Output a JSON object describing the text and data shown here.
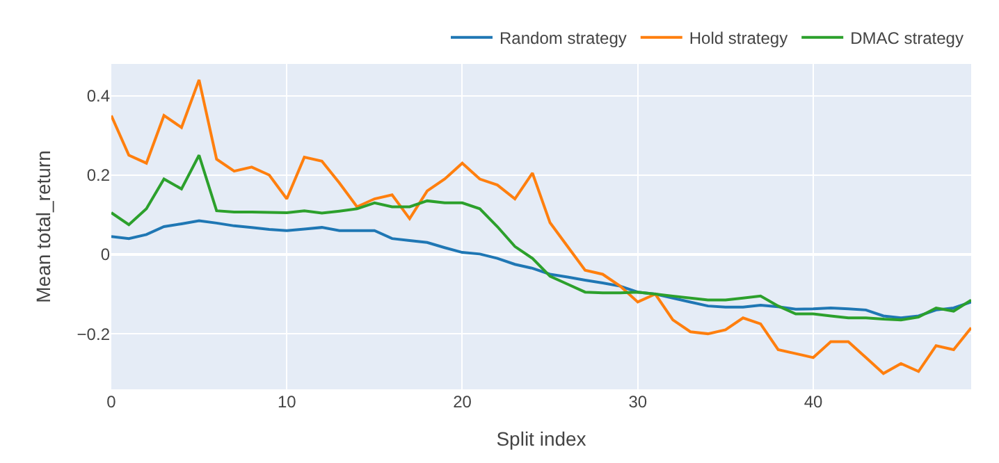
{
  "chart_data": {
    "type": "line",
    "xlabel": "Split index",
    "ylabel": "Mean total_return",
    "x": [
      0,
      1,
      2,
      3,
      4,
      5,
      6,
      7,
      8,
      9,
      10,
      11,
      12,
      13,
      14,
      15,
      16,
      17,
      18,
      19,
      20,
      21,
      22,
      23,
      24,
      25,
      26,
      27,
      28,
      29,
      30,
      31,
      32,
      33,
      34,
      35,
      36,
      37,
      38,
      39,
      40,
      41,
      42,
      43,
      44,
      45,
      46,
      47,
      48,
      49
    ],
    "series": [
      {
        "name": "Random strategy",
        "color": "#1f77b4",
        "values": [
          0.045,
          0.04,
          0.05,
          0.07,
          0.077,
          0.085,
          0.079,
          0.072,
          0.068,
          0.063,
          0.06,
          0.064,
          0.068,
          0.06,
          0.06,
          0.06,
          0.04,
          0.035,
          0.03,
          0.017,
          0.005,
          0.001,
          -0.01,
          -0.025,
          -0.035,
          -0.05,
          -0.057,
          -0.065,
          -0.072,
          -0.08,
          -0.095,
          -0.1,
          -0.11,
          -0.12,
          -0.13,
          -0.133,
          -0.133,
          -0.128,
          -0.132,
          -0.138,
          -0.137,
          -0.135,
          -0.137,
          -0.14,
          -0.155,
          -0.16,
          -0.155,
          -0.14,
          -0.135,
          -0.12
        ]
      },
      {
        "name": "Hold strategy",
        "color": "#ff7f0e",
        "values": [
          0.35,
          0.25,
          0.23,
          0.35,
          0.32,
          0.44,
          0.24,
          0.21,
          0.22,
          0.2,
          0.14,
          0.245,
          0.235,
          0.18,
          0.12,
          0.14,
          0.15,
          0.09,
          0.16,
          0.19,
          0.23,
          0.19,
          0.175,
          0.14,
          0.205,
          0.08,
          0.02,
          -0.04,
          -0.05,
          -0.08,
          -0.12,
          -0.1,
          -0.165,
          -0.195,
          -0.2,
          -0.19,
          -0.16,
          -0.175,
          -0.24,
          -0.25,
          -0.26,
          -0.22,
          -0.22,
          -0.26,
          -0.3,
          -0.275,
          -0.295,
          -0.23,
          -0.24,
          -0.185
        ]
      },
      {
        "name": "DMAC strategy",
        "color": "#2ca02c",
        "values": [
          0.105,
          0.075,
          0.115,
          0.19,
          0.165,
          0.25,
          0.11,
          0.107,
          0.107,
          0.106,
          0.105,
          0.11,
          0.104,
          0.109,
          0.115,
          0.13,
          0.12,
          0.12,
          0.135,
          0.13,
          0.13,
          0.115,
          0.07,
          0.02,
          -0.01,
          -0.055,
          -0.075,
          -0.095,
          -0.097,
          -0.097,
          -0.095,
          -0.1,
          -0.105,
          -0.11,
          -0.115,
          -0.115,
          -0.11,
          -0.105,
          -0.13,
          -0.15,
          -0.15,
          -0.155,
          -0.16,
          -0.16,
          -0.163,
          -0.165,
          -0.158,
          -0.135,
          -0.143,
          -0.115
        ]
      }
    ],
    "xlim": [
      0,
      49
    ],
    "xticks": [
      0,
      10,
      20,
      30,
      40
    ],
    "ylim": [
      -0.34,
      0.48
    ],
    "yticks": [
      {
        "value": -0.2,
        "label": "−0.2"
      },
      0,
      0.2,
      0.4
    ],
    "grid": true,
    "legend": "top right",
    "marker": "none",
    "line_style": "solid"
  }
}
